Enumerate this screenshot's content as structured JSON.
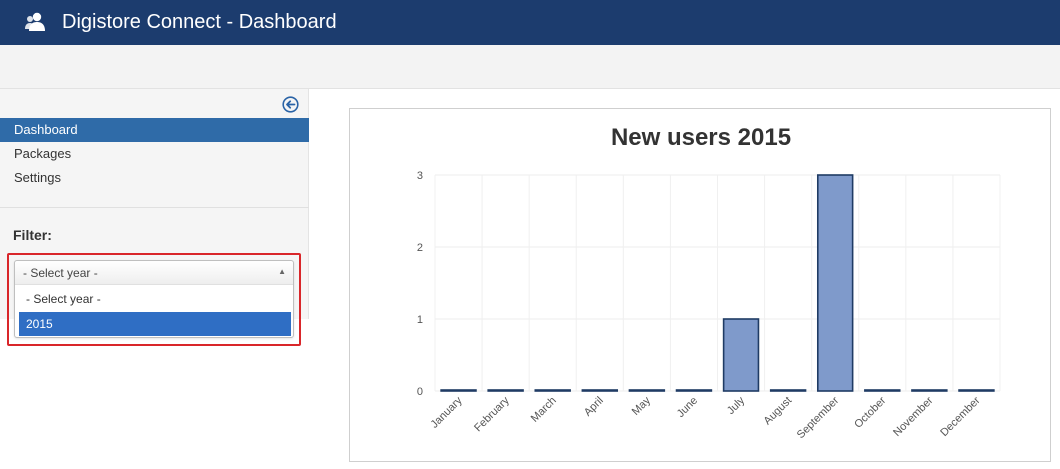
{
  "app": {
    "title": "Digistore Connect - Dashboard",
    "icon": "users-icon"
  },
  "sidebar": {
    "collapse_icon": "arrow-left-circle-icon",
    "items": [
      {
        "label": "Dashboard",
        "active": true
      },
      {
        "label": "Packages",
        "active": false
      },
      {
        "label": "Settings",
        "active": false
      }
    ],
    "filter_label": "Filter:"
  },
  "year_select": {
    "selected": "- Select year -",
    "options": [
      "- Select year -",
      "2015"
    ],
    "highlighted": "2015"
  },
  "colors": {
    "header": "#1c3c6e",
    "active_nav": "#2f6ba8",
    "bar_fill": "#7f9acb",
    "bar_stroke": "#1f3b64",
    "highlight_box": "#d9262a"
  },
  "chart_data": {
    "type": "bar",
    "title": "New users 2015",
    "categories": [
      "January",
      "February",
      "March",
      "April",
      "May",
      "June",
      "July",
      "August",
      "September",
      "October",
      "November",
      "December"
    ],
    "values": [
      0,
      0,
      0,
      0,
      0,
      0,
      1,
      0,
      3,
      0,
      0,
      0
    ],
    "yticks": [
      0,
      1,
      2,
      3
    ],
    "ylim": [
      0,
      3
    ],
    "grid": true,
    "legend": "none"
  }
}
